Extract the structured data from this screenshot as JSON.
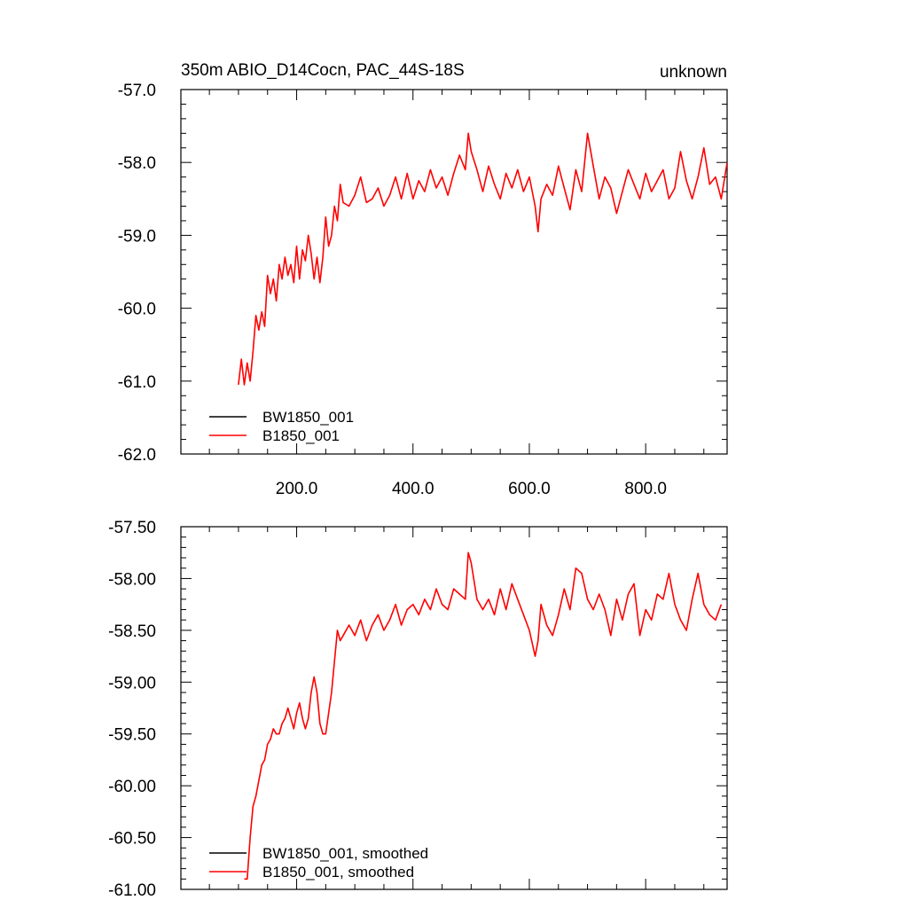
{
  "header": {
    "title_left": "350m ABIO_D14Cocn, PAC_44S-18S",
    "title_right": "unknown"
  },
  "colors": {
    "BW1850_001": "#000000",
    "B1850_001": "#ff0000",
    "axes": "#000000"
  },
  "chart_data": [
    {
      "type": "line",
      "panel": "top",
      "title": "350m ABIO_D14Cocn, PAC_44S-18S",
      "title_right": "unknown",
      "xlabel": "",
      "ylabel": "",
      "xlim": [
        1,
        940
      ],
      "ylim": [
        -62.0,
        -57.0
      ],
      "x_ticks": [
        200,
        400,
        600,
        800
      ],
      "x_tick_labels": [
        "200.0",
        "400.0",
        "600.0",
        "800.0"
      ],
      "y_ticks": [
        -57.0,
        -58.0,
        -59.0,
        -60.0,
        -61.0,
        -62.0
      ],
      "y_tick_labels": [
        "-57.0",
        "-58.0",
        "-59.0",
        "-60.0",
        "-61.0",
        "-62.0"
      ],
      "grid": false,
      "legend_position": "bottom-left",
      "legend": [
        "BW1850_001",
        "B1850_001"
      ],
      "series": [
        {
          "name": "BW1850_001",
          "color": "#000000",
          "x": [],
          "y": []
        },
        {
          "name": "B1850_001",
          "color": "#ff0000",
          "x": [
            100,
            105,
            110,
            115,
            120,
            125,
            130,
            135,
            140,
            145,
            150,
            155,
            160,
            165,
            170,
            175,
            180,
            185,
            190,
            195,
            200,
            205,
            210,
            215,
            220,
            225,
            230,
            235,
            240,
            245,
            250,
            255,
            260,
            265,
            270,
            275,
            280,
            290,
            300,
            310,
            320,
            330,
            340,
            350,
            360,
            370,
            380,
            390,
            400,
            410,
            420,
            430,
            440,
            450,
            460,
            470,
            480,
            490,
            495,
            500,
            510,
            520,
            530,
            540,
            550,
            560,
            570,
            580,
            590,
            600,
            610,
            615,
            620,
            630,
            640,
            650,
            660,
            670,
            680,
            690,
            700,
            710,
            720,
            730,
            740,
            750,
            760,
            770,
            780,
            790,
            800,
            810,
            820,
            830,
            840,
            850,
            860,
            870,
            880,
            890,
            900,
            910,
            920,
            930,
            940
          ],
          "y": [
            -61.05,
            -60.7,
            -61.05,
            -60.75,
            -61.0,
            -60.6,
            -60.1,
            -60.3,
            -60.05,
            -60.25,
            -59.55,
            -59.8,
            -59.6,
            -59.9,
            -59.4,
            -59.6,
            -59.3,
            -59.55,
            -59.4,
            -59.65,
            -59.15,
            -59.6,
            -59.2,
            -59.35,
            -59.0,
            -59.25,
            -59.6,
            -59.3,
            -59.65,
            -59.3,
            -58.75,
            -59.15,
            -59.0,
            -58.6,
            -58.8,
            -58.3,
            -58.55,
            -58.6,
            -58.45,
            -58.2,
            -58.55,
            -58.5,
            -58.35,
            -58.6,
            -58.45,
            -58.2,
            -58.5,
            -58.15,
            -58.5,
            -58.25,
            -58.4,
            -58.1,
            -58.35,
            -58.2,
            -58.45,
            -58.15,
            -57.9,
            -58.1,
            -57.6,
            -57.85,
            -58.1,
            -58.4,
            -58.05,
            -58.3,
            -58.5,
            -58.15,
            -58.35,
            -58.1,
            -58.4,
            -58.2,
            -58.6,
            -58.95,
            -58.5,
            -58.3,
            -58.45,
            -58.05,
            -58.35,
            -58.65,
            -58.1,
            -58.4,
            -57.6,
            -58.05,
            -58.5,
            -58.2,
            -58.35,
            -58.7,
            -58.4,
            -58.1,
            -58.3,
            -58.5,
            -58.15,
            -58.4,
            -58.25,
            -58.1,
            -58.5,
            -58.35,
            -57.85,
            -58.25,
            -58.5,
            -58.2,
            -57.8,
            -58.3,
            -58.2,
            -58.5,
            -58.0
          ]
        }
      ]
    },
    {
      "type": "line",
      "panel": "bottom",
      "title": "",
      "xlabel": "",
      "ylabel": "",
      "xlim": [
        1,
        940
      ],
      "ylim": [
        -61.0,
        -57.5
      ],
      "x_ticks": [
        200,
        400,
        600,
        800
      ],
      "x_tick_labels": [
        "",
        "",
        "",
        ""
      ],
      "y_ticks": [
        -57.5,
        -58.0,
        -58.5,
        -59.0,
        -59.5,
        -60.0,
        -60.5,
        -61.0
      ],
      "y_tick_labels": [
        "-57.50",
        "-58.00",
        "-58.50",
        "-59.00",
        "-59.50",
        "-60.00",
        "-60.50",
        "-61.00"
      ],
      "grid": false,
      "legend_position": "bottom-left",
      "legend": [
        "BW1850_001, smoothed",
        "B1850_001, smoothed"
      ],
      "series": [
        {
          "name": "BW1850_001, smoothed",
          "color": "#000000",
          "x": [],
          "y": []
        },
        {
          "name": "B1850_001, smoothed",
          "color": "#ff0000",
          "x": [
            110,
            115,
            120,
            125,
            130,
            135,
            140,
            145,
            150,
            155,
            160,
            165,
            170,
            175,
            180,
            185,
            190,
            195,
            200,
            205,
            210,
            215,
            220,
            225,
            230,
            235,
            240,
            245,
            250,
            255,
            260,
            265,
            270,
            275,
            280,
            290,
            300,
            310,
            320,
            330,
            340,
            350,
            360,
            370,
            380,
            390,
            400,
            410,
            420,
            430,
            440,
            450,
            460,
            470,
            480,
            490,
            495,
            500,
            510,
            520,
            530,
            540,
            550,
            560,
            570,
            580,
            590,
            600,
            610,
            615,
            620,
            630,
            640,
            650,
            660,
            670,
            680,
            690,
            700,
            710,
            720,
            730,
            740,
            750,
            760,
            770,
            780,
            790,
            800,
            810,
            820,
            830,
            840,
            850,
            860,
            870,
            880,
            890,
            900,
            910,
            920,
            930
          ],
          "y": [
            -60.9,
            -60.9,
            -60.5,
            -60.2,
            -60.1,
            -59.95,
            -59.8,
            -59.75,
            -59.6,
            -59.55,
            -59.45,
            -59.5,
            -59.5,
            -59.4,
            -59.35,
            -59.25,
            -59.35,
            -59.45,
            -59.3,
            -59.2,
            -59.35,
            -59.45,
            -59.35,
            -59.1,
            -58.95,
            -59.1,
            -59.4,
            -59.5,
            -59.5,
            -59.3,
            -59.1,
            -58.8,
            -58.5,
            -58.6,
            -58.55,
            -58.45,
            -58.55,
            -58.4,
            -58.6,
            -58.45,
            -58.35,
            -58.5,
            -58.4,
            -58.25,
            -58.45,
            -58.3,
            -58.25,
            -58.35,
            -58.2,
            -58.3,
            -58.1,
            -58.25,
            -58.3,
            -58.1,
            -58.15,
            -58.2,
            -57.75,
            -57.85,
            -58.2,
            -58.3,
            -58.2,
            -58.35,
            -58.1,
            -58.3,
            -58.05,
            -58.2,
            -58.35,
            -58.5,
            -58.75,
            -58.6,
            -58.25,
            -58.45,
            -58.55,
            -58.35,
            -58.1,
            -58.3,
            -57.9,
            -57.95,
            -58.2,
            -58.3,
            -58.15,
            -58.3,
            -58.55,
            -58.2,
            -58.4,
            -58.15,
            -58.05,
            -58.55,
            -58.3,
            -58.4,
            -58.15,
            -58.2,
            -57.95,
            -58.25,
            -58.4,
            -58.5,
            -58.2,
            -57.95,
            -58.25,
            -58.35,
            -58.4,
            -58.25
          ]
        }
      ]
    }
  ]
}
